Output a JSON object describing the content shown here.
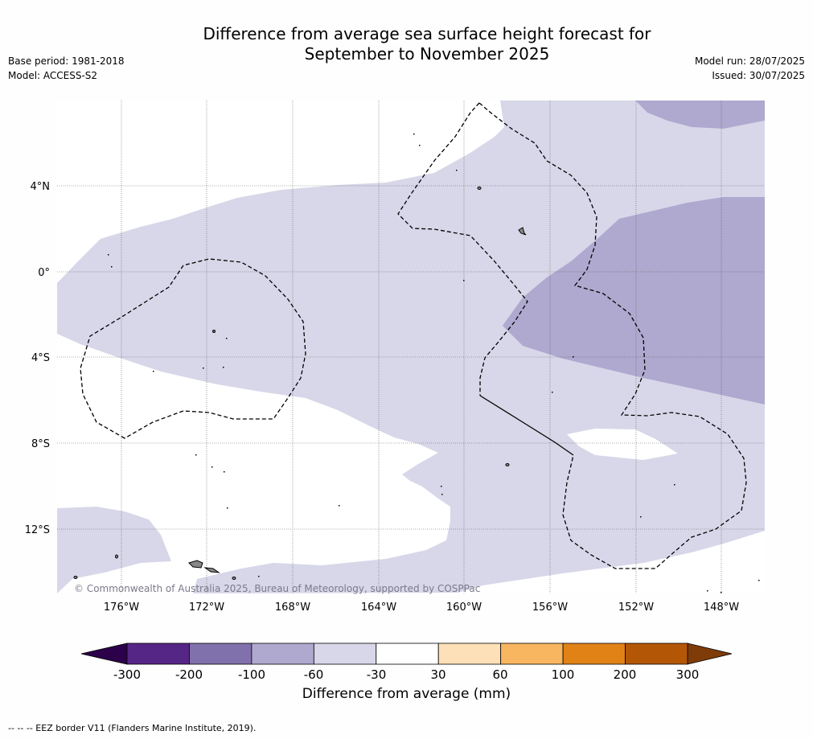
{
  "header": {
    "title_line1": "Difference from average sea surface height forecast for",
    "title_line2": "September to November 2025",
    "base_period": "Base period: 1981-2018",
    "model": "Model: ACCESS-S2",
    "model_run": "Model run: 28/07/2025",
    "issued": "Issued: 30/07/2025"
  },
  "map": {
    "lat_labels": [
      "4°N",
      "0°",
      "4°S",
      "8°S",
      "12°S"
    ],
    "lon_labels": [
      "176°W",
      "172°W",
      "168°W",
      "164°W",
      "160°W",
      "156°W",
      "152°W",
      "148°W"
    ],
    "copyright": "© Commonwealth of Australia 2025, Bureau of Meteorology, supported by COSPPac"
  },
  "colorbar": {
    "ticks": [
      "-300",
      "-200",
      "-100",
      "-60",
      "-30",
      "30",
      "60",
      "100",
      "200",
      "300"
    ],
    "colors": [
      "#562686",
      "#8070ab",
      "#afa8cf",
      "#d7d7e9",
      "#ffffff",
      "#fee0b8",
      "#f9b660",
      "#e18217",
      "#b35707"
    ],
    "extend_low_color": "#2d004b",
    "extend_high_color": "#7f3b08",
    "label": "Difference from average (mm)"
  },
  "footnote": "--  --  -- EEZ border V11 (Flanders Marine Institute, 2019)."
}
